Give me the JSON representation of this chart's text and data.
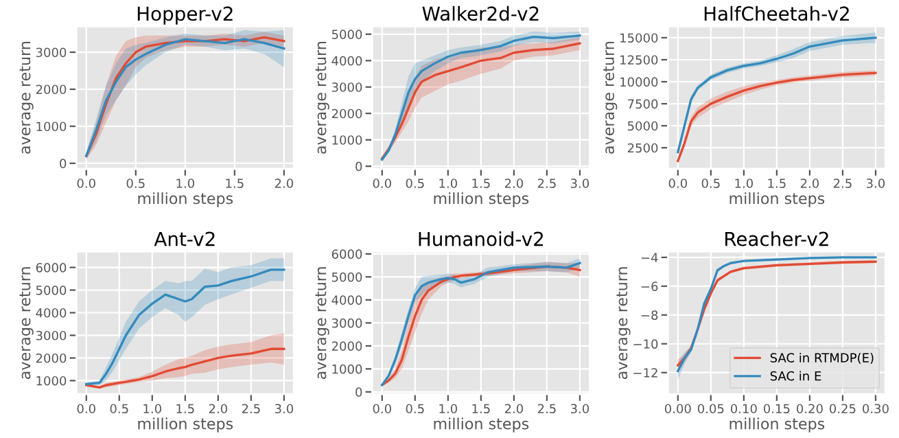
{
  "chart_data": [
    {
      "type": "line",
      "title": "Hopper-v2",
      "xlabel": "million steps",
      "ylabel": "average return",
      "grid": true,
      "xlim": [
        -0.1,
        2.1
      ],
      "ylim": [
        -150,
        3700
      ],
      "xticks": [
        {
          "value": 0,
          "label": "0.0"
        },
        {
          "value": 0.5,
          "label": "0.5"
        },
        {
          "value": 1,
          "label": "1.0"
        },
        {
          "value": 1.5,
          "label": "1.5"
        },
        {
          "value": 2,
          "label": "2.0"
        }
      ],
      "yticks": [
        0,
        1000,
        2000,
        3000
      ],
      "x": [
        0,
        0.1,
        0.2,
        0.3,
        0.4,
        0.5,
        0.6,
        0.8,
        1.0,
        1.2,
        1.4,
        1.6,
        1.8,
        2.0
      ],
      "series": [
        {
          "color": "#e24a33",
          "values": [
            200,
            800,
            1600,
            2300,
            2700,
            3000,
            3150,
            3250,
            3300,
            3300,
            3350,
            3300,
            3400,
            3300
          ],
          "lower": [
            100,
            500,
            1100,
            1700,
            2100,
            2600,
            2850,
            3050,
            3150,
            3150,
            3200,
            3150,
            3250,
            3150
          ],
          "upper": [
            300,
            1100,
            2100,
            2900,
            3300,
            3400,
            3450,
            3450,
            3450,
            3450,
            3500,
            3450,
            3550,
            3450
          ]
        },
        {
          "color": "#348abd",
          "values": [
            200,
            900,
            1700,
            2200,
            2600,
            2800,
            2950,
            3200,
            3350,
            3300,
            3250,
            3350,
            3250,
            3100
          ],
          "lower": [
            100,
            600,
            1300,
            1700,
            2100,
            2400,
            2650,
            3000,
            3200,
            3150,
            3050,
            3100,
            2950,
            2600
          ],
          "upper": [
            300,
            1200,
            2100,
            2700,
            3100,
            3200,
            3250,
            3400,
            3500,
            3450,
            3450,
            3600,
            3550,
            3600
          ]
        }
      ]
    },
    {
      "type": "line",
      "title": "Walker2d-v2",
      "xlabel": "million steps",
      "ylabel": "average return",
      "grid": true,
      "xlim": [
        -0.15,
        3.15
      ],
      "ylim": [
        -100,
        5300
      ],
      "xticks": [
        {
          "value": 0,
          "label": "0.0"
        },
        {
          "value": 0.5,
          "label": "0.5"
        },
        {
          "value": 1,
          "label": "1.0"
        },
        {
          "value": 1.5,
          "label": "1.5"
        },
        {
          "value": 2,
          "label": "2.0"
        },
        {
          "value": 2.5,
          "label": "2.5"
        },
        {
          "value": 3,
          "label": "3.0"
        }
      ],
      "yticks": [
        0,
        1000,
        2000,
        3000,
        4000,
        5000
      ],
      "x": [
        0,
        0.1,
        0.2,
        0.3,
        0.4,
        0.5,
        0.6,
        0.8,
        1.0,
        1.2,
        1.5,
        1.8,
        2.0,
        2.3,
        2.6,
        3.0
      ],
      "series": [
        {
          "color": "#e24a33",
          "values": [
            300,
            650,
            1100,
            1600,
            2200,
            2800,
            3200,
            3450,
            3600,
            3750,
            4000,
            4100,
            4300,
            4400,
            4450,
            4650
          ],
          "lower": [
            250,
            550,
            900,
            1300,
            1700,
            2200,
            2600,
            2850,
            3100,
            3250,
            3500,
            3700,
            4000,
            4150,
            4200,
            4400
          ],
          "upper": [
            350,
            750,
            1300,
            1900,
            2700,
            3400,
            3800,
            4050,
            4100,
            4250,
            4500,
            4500,
            4600,
            4650,
            4700,
            4900
          ]
        },
        {
          "color": "#348abd",
          "values": [
            250,
            600,
            1200,
            2000,
            2800,
            3300,
            3600,
            3900,
            4150,
            4300,
            4400,
            4550,
            4750,
            4900,
            4850,
            4950
          ],
          "lower": [
            200,
            500,
            1000,
            1600,
            2200,
            2700,
            3200,
            3600,
            3900,
            4100,
            4200,
            4350,
            4550,
            4700,
            4650,
            4800
          ],
          "upper": [
            300,
            700,
            1400,
            2400,
            3400,
            3900,
            4000,
            4200,
            4400,
            4500,
            4600,
            4750,
            4950,
            5100,
            5050,
            5100
          ]
        }
      ]
    },
    {
      "type": "line",
      "title": "HalfCheetah-v2",
      "xlabel": "million steps",
      "ylabel": "average return",
      "grid": true,
      "xlim": [
        -0.15,
        3.15
      ],
      "ylim": [
        100,
        16300
      ],
      "xticks": [
        {
          "value": 0,
          "label": "0.0"
        },
        {
          "value": 0.5,
          "label": "0.5"
        },
        {
          "value": 1,
          "label": "1.0"
        },
        {
          "value": 1.5,
          "label": "1.5"
        },
        {
          "value": 2,
          "label": "2.0"
        },
        {
          "value": 2.5,
          "label": "2.5"
        },
        {
          "value": 3,
          "label": "3.0"
        }
      ],
      "yticks": [
        2500,
        5000,
        7500,
        10000,
        12500,
        15000
      ],
      "x": [
        0,
        0.1,
        0.2,
        0.3,
        0.5,
        0.75,
        1.0,
        1.25,
        1.5,
        1.75,
        2.0,
        2.5,
        3.0
      ],
      "series": [
        {
          "color": "#e24a33",
          "values": [
            1000,
            3000,
            5500,
            6500,
            7500,
            8300,
            9000,
            9500,
            9900,
            10200,
            10400,
            10800,
            11000
          ],
          "lower": [
            800,
            2600,
            5000,
            5900,
            6900,
            7700,
            8500,
            9100,
            9600,
            9900,
            10100,
            10500,
            10700
          ],
          "upper": [
            1200,
            3400,
            6000,
            7100,
            8100,
            8900,
            9500,
            9900,
            10200,
            10500,
            10700,
            11100,
            11300
          ]
        },
        {
          "color": "#348abd",
          "values": [
            2000,
            5000,
            8000,
            9300,
            10500,
            11300,
            11800,
            12100,
            12600,
            13200,
            14000,
            14700,
            15000
          ],
          "lower": [
            1800,
            4600,
            7600,
            9000,
            10200,
            11000,
            11500,
            11800,
            12200,
            12700,
            13500,
            14200,
            14400
          ],
          "upper": [
            2200,
            5400,
            8400,
            9600,
            10800,
            11600,
            12100,
            12400,
            13000,
            13700,
            14500,
            15200,
            15600
          ]
        }
      ]
    },
    {
      "type": "line",
      "title": "Ant-v2",
      "xlabel": "million steps",
      "ylabel": "average return",
      "grid": true,
      "xlim": [
        -0.15,
        3.15
      ],
      "ylim": [
        400,
        6700
      ],
      "xticks": [
        {
          "value": 0,
          "label": "0.0"
        },
        {
          "value": 0.5,
          "label": "0.5"
        },
        {
          "value": 1,
          "label": "1.0"
        },
        {
          "value": 1.5,
          "label": "1.5"
        },
        {
          "value": 2,
          "label": "2.0"
        },
        {
          "value": 2.5,
          "label": "2.5"
        },
        {
          "value": 3,
          "label": "3.0"
        }
      ],
      "yticks": [
        1000,
        2000,
        3000,
        4000,
        5000,
        6000
      ],
      "x": [
        0,
        0.2,
        0.3,
        0.4,
        0.5,
        0.6,
        0.8,
        1.0,
        1.2,
        1.4,
        1.5,
        1.6,
        1.8,
        2.0,
        2.2,
        2.5,
        2.8,
        3.0
      ],
      "series": [
        {
          "color": "#e24a33",
          "values": [
            800,
            700,
            800,
            850,
            900,
            950,
            1050,
            1200,
            1400,
            1550,
            1600,
            1700,
            1850,
            2000,
            2100,
            2200,
            2400,
            2400
          ],
          "lower": [
            750,
            650,
            700,
            750,
            800,
            850,
            950,
            1000,
            1100,
            1150,
            1200,
            1300,
            1350,
            1500,
            1600,
            1700,
            1800,
            1700
          ],
          "upper": [
            850,
            750,
            900,
            950,
            1000,
            1050,
            1150,
            1400,
            1700,
            1950,
            2000,
            2100,
            2350,
            2500,
            2600,
            2700,
            3000,
            3100
          ]
        },
        {
          "color": "#348abd",
          "values": [
            850,
            900,
            1300,
            1800,
            2400,
            3000,
            3900,
            4400,
            4800,
            4600,
            4500,
            4600,
            5150,
            5200,
            5400,
            5600,
            5900,
            5900
          ],
          "lower": [
            800,
            800,
            1000,
            1400,
            1900,
            2400,
            3300,
            3800,
            4200,
            3900,
            3600,
            3800,
            4350,
            4600,
            4800,
            5100,
            5400,
            5400
          ],
          "upper": [
            900,
            1000,
            1600,
            2200,
            2900,
            3600,
            4500,
            5000,
            5400,
            5300,
            5400,
            5400,
            5950,
            5800,
            6000,
            6100,
            6400,
            6400
          ]
        }
      ]
    },
    {
      "type": "line",
      "title": "Humanoid-v2",
      "xlabel": "million steps",
      "ylabel": "average return",
      "grid": true,
      "xlim": [
        -0.15,
        3.15
      ],
      "ylim": [
        -100,
        6100
      ],
      "xticks": [
        {
          "value": 0,
          "label": "0.0"
        },
        {
          "value": 0.5,
          "label": "0.5"
        },
        {
          "value": 1,
          "label": "1.0"
        },
        {
          "value": 1.5,
          "label": "1.5"
        },
        {
          "value": 2,
          "label": "2.0"
        },
        {
          "value": 2.5,
          "label": "2.5"
        },
        {
          "value": 3,
          "label": "3.0"
        }
      ],
      "yticks": [
        0,
        1000,
        2000,
        3000,
        4000,
        5000,
        6000
      ],
      "x": [
        0,
        0.1,
        0.2,
        0.3,
        0.4,
        0.5,
        0.6,
        0.7,
        0.9,
        1.0,
        1.1,
        1.2,
        1.4,
        1.6,
        2.0,
        2.5,
        2.8,
        3.0
      ],
      "series": [
        {
          "color": "#e24a33",
          "values": [
            300,
            500,
            800,
            1400,
            2400,
            3300,
            4000,
            4400,
            4800,
            4900,
            5000,
            5050,
            5100,
            5150,
            5300,
            5450,
            5400,
            5300
          ],
          "lower": [
            250,
            400,
            600,
            1000,
            1800,
            2600,
            3400,
            4000,
            4600,
            4750,
            4850,
            4950,
            5000,
            5050,
            5150,
            5250,
            5200,
            5000
          ],
          "upper": [
            350,
            600,
            1000,
            1800,
            3000,
            4000,
            4600,
            4800,
            5000,
            5050,
            5150,
            5150,
            5200,
            5250,
            5450,
            5650,
            5600,
            5600
          ]
        },
        {
          "color": "#348abd",
          "values": [
            300,
            700,
            1400,
            2300,
            3300,
            4200,
            4600,
            4750,
            4900,
            4950,
            4900,
            4750,
            4900,
            5200,
            5400,
            5450,
            5400,
            5600
          ],
          "lower": [
            250,
            600,
            1200,
            2000,
            3000,
            3900,
            4200,
            4450,
            4700,
            4750,
            4700,
            4550,
            4700,
            5000,
            5250,
            5250,
            5200,
            5400
          ],
          "upper": [
            350,
            800,
            1600,
            2600,
            3600,
            4500,
            5000,
            5050,
            5100,
            5150,
            5100,
            4950,
            5100,
            5400,
            5550,
            5650,
            5600,
            5800
          ]
        }
      ]
    },
    {
      "type": "line",
      "title": "Reacher-v2",
      "xlabel": "million steps",
      "ylabel": "average return",
      "grid": true,
      "legend": "bottom right",
      "xlim": [
        -0.015,
        0.315
      ],
      "ylim": [
        -13.5,
        -3.6
      ],
      "xticks": [
        {
          "value": 0,
          "label": "0.00"
        },
        {
          "value": 0.05,
          "label": "0.05"
        },
        {
          "value": 0.1,
          "label": "0.10"
        },
        {
          "value": 0.15,
          "label": "0.15"
        },
        {
          "value": 0.2,
          "label": "0.20"
        },
        {
          "value": 0.25,
          "label": "0.25"
        },
        {
          "value": 0.3,
          "label": "0.30"
        }
      ],
      "yticks": [
        {
          "value": -12,
          "label": "−12"
        },
        {
          "value": -10,
          "label": "−10"
        },
        {
          "value": -8,
          "label": "−8"
        },
        {
          "value": -6,
          "label": "−6"
        },
        {
          "value": -4,
          "label": "−4"
        }
      ],
      "x": [
        0,
        0.01,
        0.02,
        0.03,
        0.04,
        0.05,
        0.06,
        0.07,
        0.08,
        0.1,
        0.15,
        0.2,
        0.25,
        0.3
      ],
      "series": [
        {
          "name": "SAC in RTMDP(E)",
          "color": "#e24a33",
          "values": [
            -11.5,
            -11,
            -10.3,
            -9.0,
            -7.6,
            -6.5,
            -5.6,
            -5.3,
            -5.0,
            -4.75,
            -4.55,
            -4.45,
            -4.35,
            -4.3
          ],
          "lower": [
            -11.9,
            -11.3,
            -10.5,
            -9.2,
            -7.8,
            -6.7,
            -5.75,
            -5.4,
            -5.1,
            -4.85,
            -4.65,
            -4.55,
            -4.45,
            -4.4
          ],
          "upper": [
            -11.1,
            -10.7,
            -10.1,
            -8.8,
            -7.4,
            -6.3,
            -5.45,
            -5.2,
            -4.9,
            -4.65,
            -4.45,
            -4.35,
            -4.25,
            -4.2
          ]
        },
        {
          "name": "SAC in E",
          "color": "#348abd",
          "values": [
            -11.9,
            -11,
            -10.4,
            -9.0,
            -7.2,
            -6.2,
            -4.9,
            -4.6,
            -4.4,
            -4.25,
            -4.15,
            -4.05,
            -4.0,
            -4.0
          ],
          "lower": [
            -12.5,
            -11.4,
            -10.6,
            -9.2,
            -7.4,
            -6.4,
            -5.0,
            -4.7,
            -4.45,
            -4.3,
            -4.2,
            -4.1,
            -4.05,
            -4.05
          ],
          "upper": [
            -11.3,
            -10.6,
            -10.2,
            -8.8,
            -7.0,
            -6.0,
            -4.8,
            -4.5,
            -4.35,
            -4.2,
            -4.1,
            -4.0,
            -3.95,
            -3.95
          ]
        }
      ]
    }
  ]
}
